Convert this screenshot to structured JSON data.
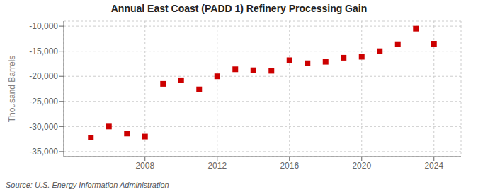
{
  "chart_data": {
    "type": "scatter",
    "title": "Annual East Coast (PADD 1) Refinery Processing Gain",
    "ylabel": "Thousand Barrels",
    "source": "Source: U.S. Energy Information Administration",
    "x": [
      2005,
      2006,
      2007,
      2008,
      2009,
      2010,
      2011,
      2012,
      2013,
      2014,
      2015,
      2016,
      2017,
      2018,
      2019,
      2020,
      2021,
      2022,
      2023,
      2024
    ],
    "values": [
      -32200,
      -30000,
      -31400,
      -32000,
      -21500,
      -20800,
      -22600,
      -20000,
      -18600,
      -18800,
      -18900,
      -16800,
      -17400,
      -17100,
      -16300,
      -16100,
      -15000,
      -13600,
      -10500,
      -13500
    ],
    "color": "#cc0000",
    "marker": "square",
    "xlim": [
      2003.5,
      2025.5
    ],
    "ylim": [
      -36000,
      -9000
    ],
    "xticks": [
      2008,
      2012,
      2016,
      2020,
      2024
    ],
    "yticks": [
      {
        "value": -10000,
        "label": "-10,000"
      },
      {
        "value": -15000,
        "label": "-15,000"
      },
      {
        "value": -20000,
        "label": "-20,000"
      },
      {
        "value": -25000,
        "label": "-25,000"
      },
      {
        "value": -30000,
        "label": "-30,000"
      },
      {
        "value": -35000,
        "label": "-35,000"
      }
    ],
    "grid": true
  }
}
